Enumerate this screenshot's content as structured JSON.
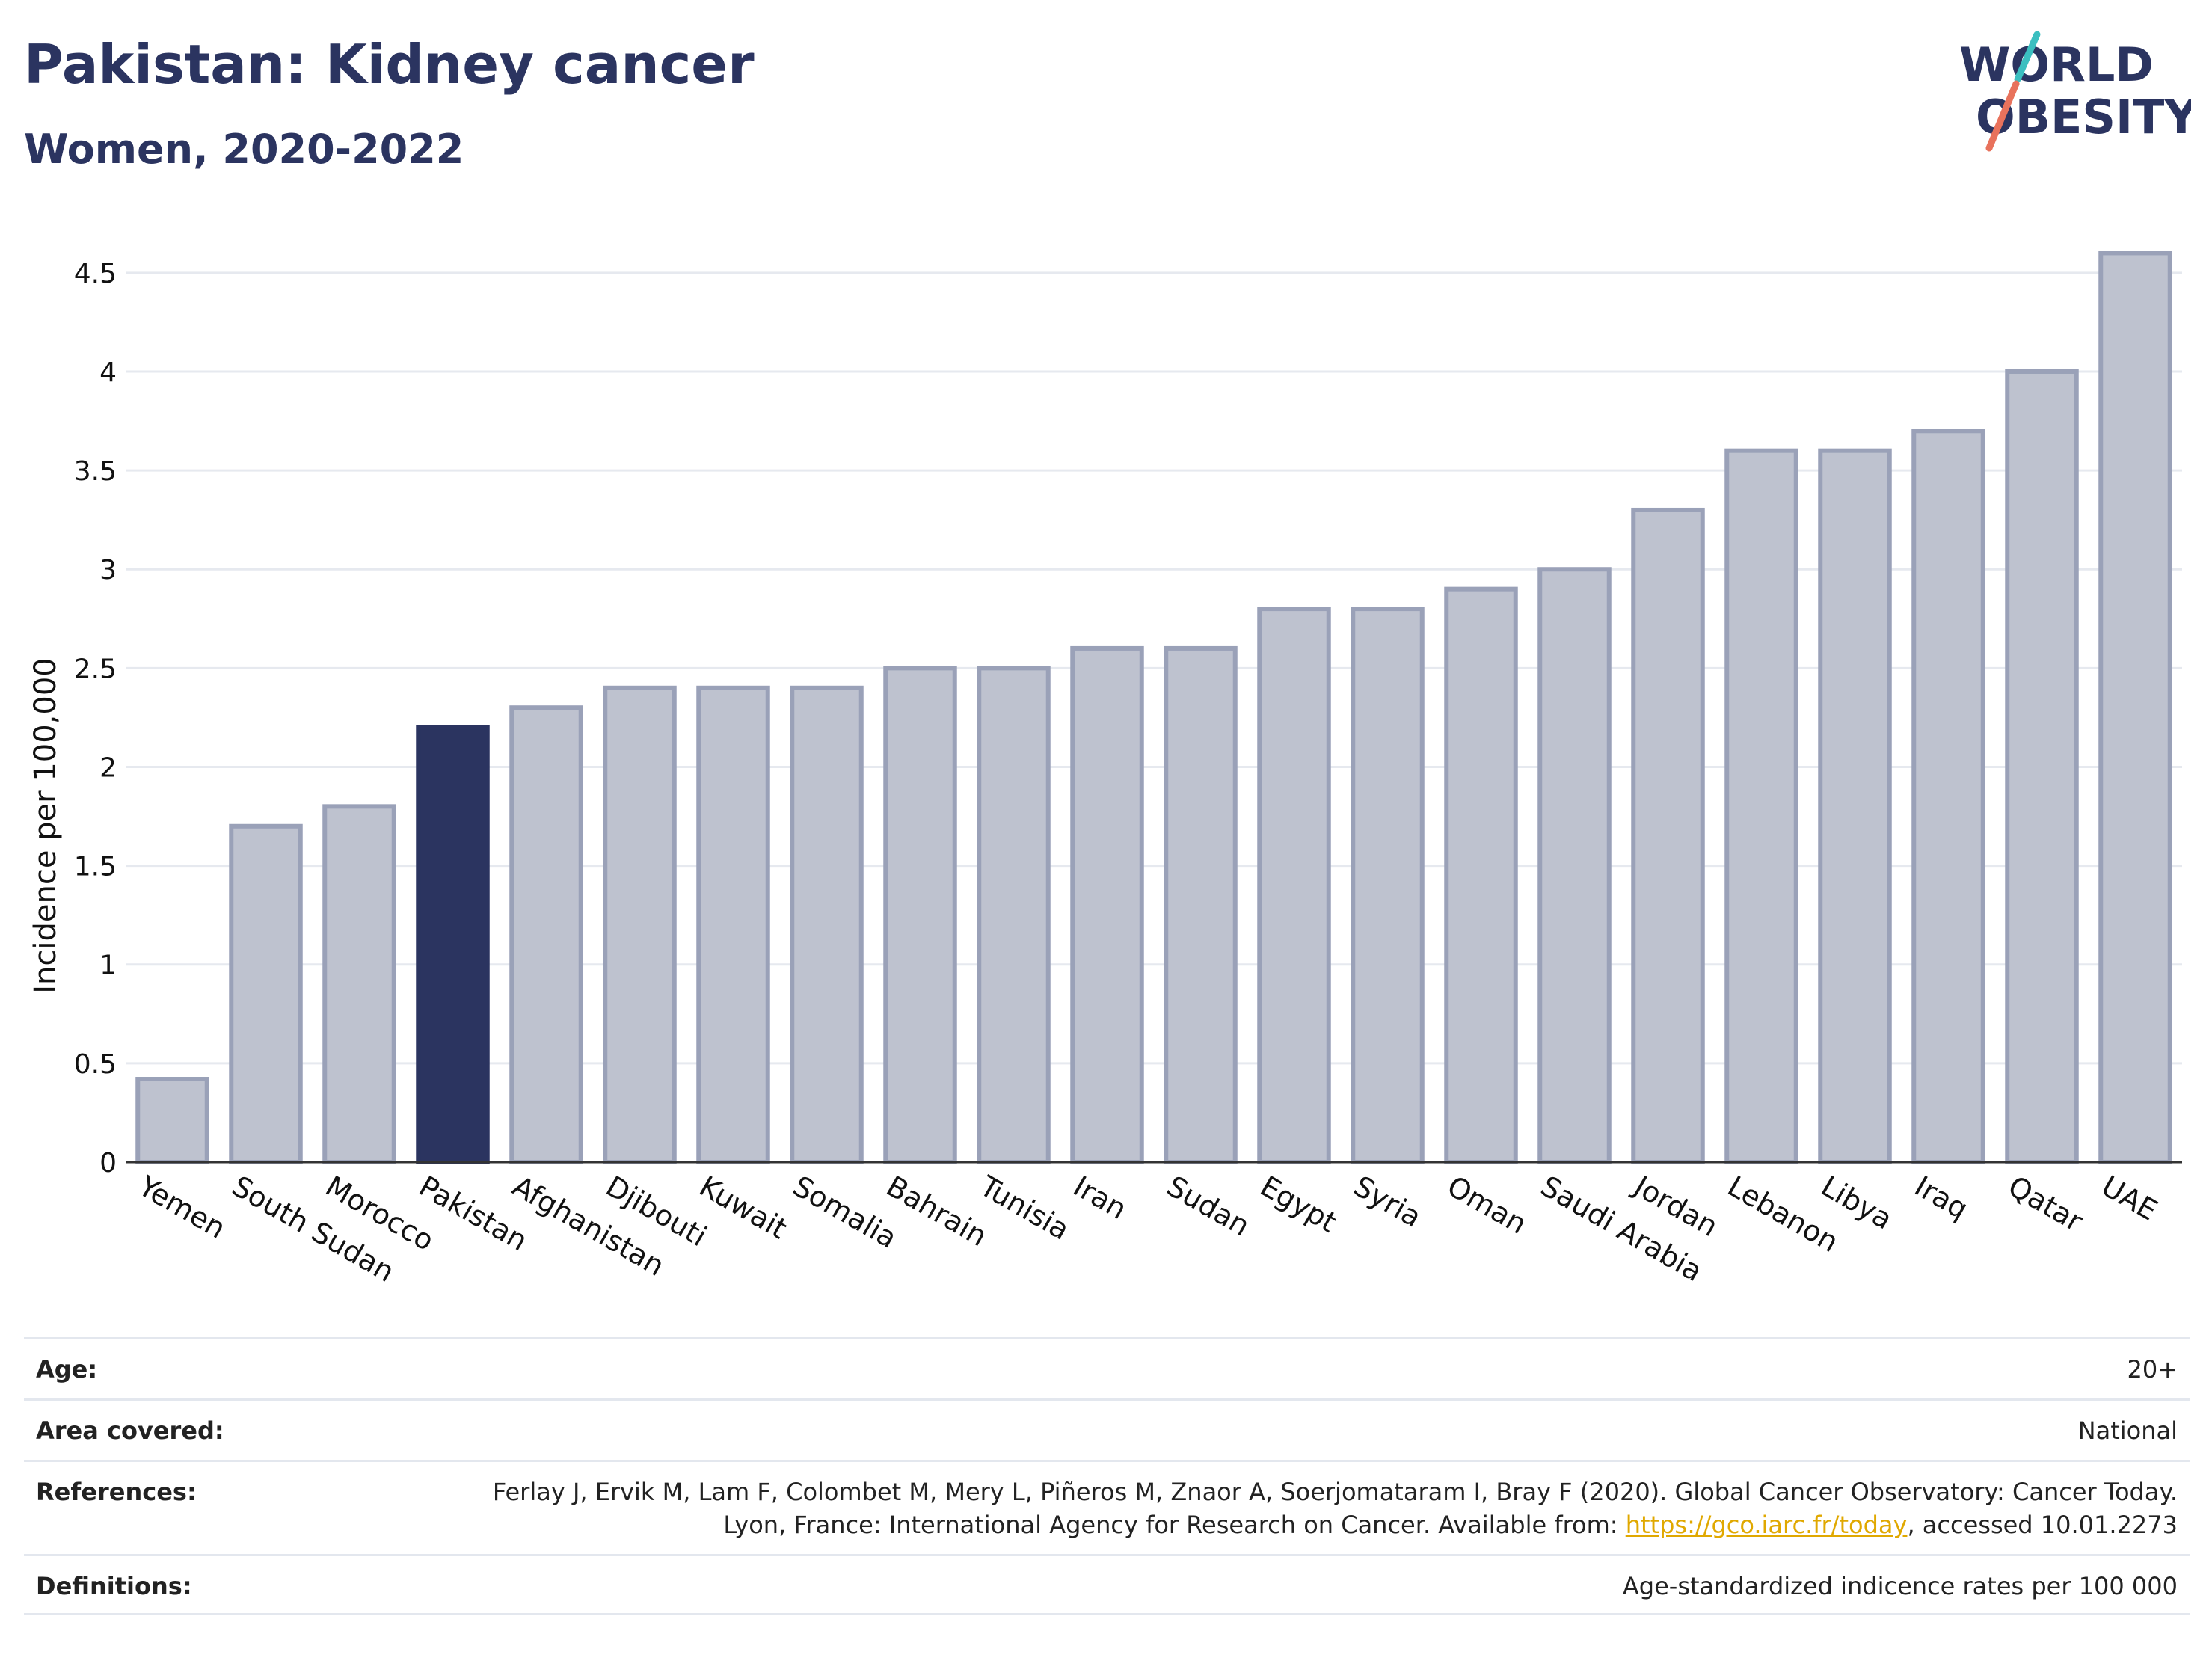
{
  "header": {
    "title": "Pakistan: Kidney cancer",
    "subtitle": "Women, 2020-2022",
    "logo_line1": "WORLD",
    "logo_line2": "OBESITY"
  },
  "colors": {
    "highlight": "#2b3460",
    "bar_fill": "#bec2cf",
    "bar_stroke": "#9aa1b8",
    "logo_teal": "#3bbfc0",
    "logo_coral": "#e8725c",
    "link": "#e0a800"
  },
  "chart_data": {
    "type": "bar",
    "title": "",
    "xlabel": "",
    "ylabel": "Incidence per 100,000",
    "ylim": [
      0,
      4.7
    ],
    "yticks": [
      0,
      0.5,
      1,
      1.5,
      2,
      2.5,
      3,
      3.5,
      4,
      4.5
    ],
    "ytick_labels": [
      "0",
      "0.5",
      "1",
      "1.5",
      "2",
      "2.5",
      "3",
      "3.5",
      "4",
      "4.5"
    ],
    "grid": true,
    "highlight": "Pakistan",
    "categories": [
      "Yemen",
      "South Sudan",
      "Morocco",
      "Pakistan",
      "Afghanistan",
      "Djibouti",
      "Kuwait",
      "Somalia",
      "Bahrain",
      "Tunisia",
      "Iran",
      "Sudan",
      "Egypt",
      "Syria",
      "Oman",
      "Saudi Arabia",
      "Jordan",
      "Lebanon",
      "Libya",
      "Iraq",
      "Qatar",
      "UAE"
    ],
    "values": [
      0.42,
      1.7,
      1.8,
      2.2,
      2.3,
      2.4,
      2.4,
      2.4,
      2.5,
      2.5,
      2.6,
      2.6,
      2.8,
      2.8,
      2.9,
      3.0,
      3.3,
      3.6,
      3.6,
      3.7,
      4.0,
      4.6
    ]
  },
  "info": {
    "age_label": "Age:",
    "age_value": "20+",
    "area_label": "Area covered:",
    "area_value": "National",
    "references_label": "References:",
    "references_text": "Ferlay J, Ervik M, Lam F, Colombet M, Mery L, Piñeros M, Znaor A, Soerjomataram I, Bray F (2020). Global Cancer Observatory: Cancer Today. Lyon, France: International Agency for Research on Cancer. Available from: ",
    "references_link": "https://gco.iarc.fr/today",
    "references_suffix": ", accessed 10.01.2273",
    "definitions_label": "Definitions:",
    "definitions_value": "Age-standardized indicence rates per 100 000"
  }
}
